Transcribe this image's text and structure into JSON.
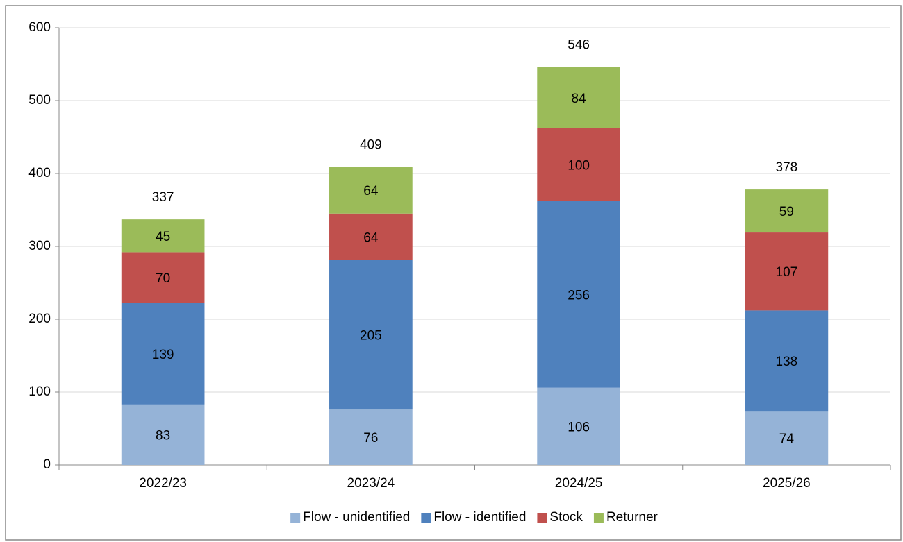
{
  "chart_data": {
    "type": "stacked_bar",
    "categories": [
      "2022/23",
      "2023/24",
      "2024/25",
      "2025/26"
    ],
    "series": [
      {
        "name": "Flow - unidentified",
        "color": "#95b3d7",
        "values": [
          83,
          76,
          106,
          74
        ]
      },
      {
        "name": "Flow - identified",
        "color": "#4f81bd",
        "values": [
          139,
          205,
          256,
          138
        ]
      },
      {
        "name": "Stock",
        "color": "#c0504d",
        "values": [
          70,
          64,
          100,
          107
        ]
      },
      {
        "name": "Returner",
        "color": "#9bbb59",
        "values": [
          45,
          64,
          84,
          59
        ]
      }
    ],
    "totals": [
      337,
      409,
      546,
      378
    ],
    "ylim": [
      0,
      600
    ],
    "yticks": [
      0,
      100,
      200,
      300,
      400,
      500,
      600
    ],
    "grid": true,
    "legend": "bottom"
  }
}
